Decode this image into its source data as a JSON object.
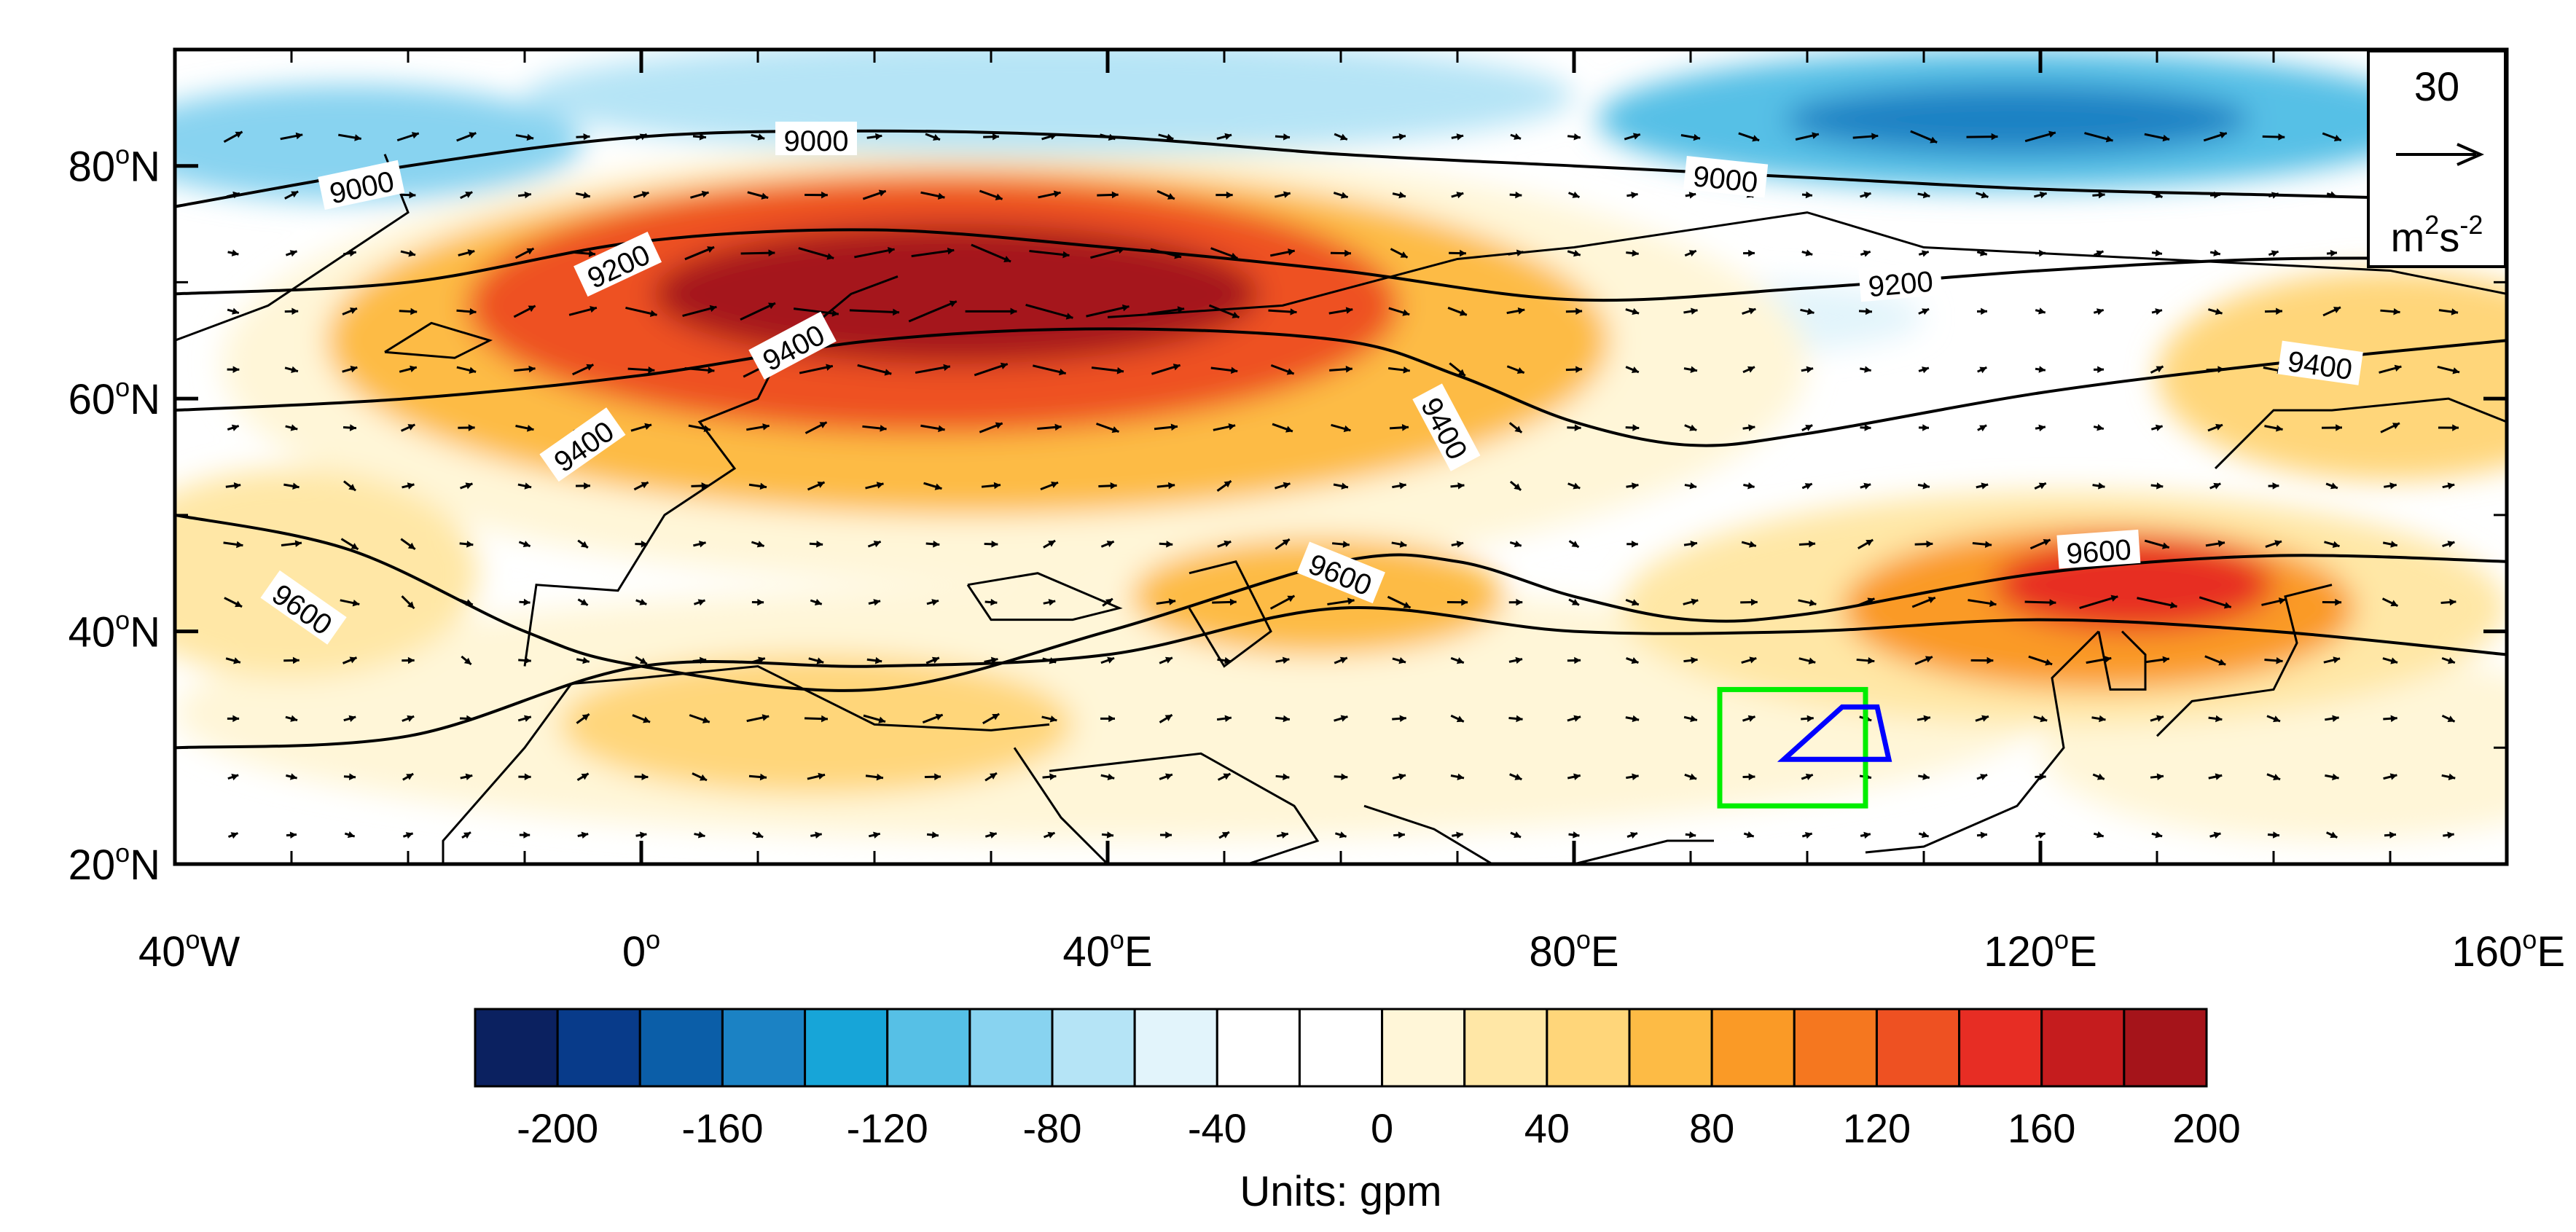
{
  "map": {
    "lon_range": [
      -40,
      160
    ],
    "lat_range": [
      20,
      90
    ],
    "lon_ticks": [
      {
        "lon": -40,
        "deg": "40",
        "hemi": "W"
      },
      {
        "lon": 0,
        "deg": "0",
        "hemi": ""
      },
      {
        "lon": 40,
        "deg": "40",
        "hemi": "E"
      },
      {
        "lon": 80,
        "deg": "80",
        "hemi": "E"
      },
      {
        "lon": 120,
        "deg": "120",
        "hemi": "E"
      },
      {
        "lon": 160,
        "deg": "160",
        "hemi": "E"
      }
    ],
    "lat_ticks": [
      {
        "lat": 20,
        "deg": "20",
        "hemi": "N"
      },
      {
        "lat": 40,
        "deg": "40",
        "hemi": "N"
      },
      {
        "lat": 60,
        "deg": "60",
        "hemi": "N"
      },
      {
        "lat": 80,
        "deg": "80",
        "hemi": "N"
      }
    ],
    "degree_symbol": "o",
    "anomaly_blobs": [
      {
        "lon": 27,
        "lat": 69,
        "rx": 26,
        "ry": 6,
        "value": 200
      },
      {
        "lon": 25,
        "lat": 68,
        "rx": 40,
        "ry": 11,
        "value": 140
      },
      {
        "lon": 28,
        "lat": 65,
        "rx": 55,
        "ry": 15,
        "value": 80
      },
      {
        "lon": 32,
        "lat": 63,
        "rx": 68,
        "ry": 19,
        "value": 30
      },
      {
        "lon": 128,
        "lat": 44,
        "rx": 12,
        "ry": 4,
        "value": 160
      },
      {
        "lon": 125,
        "lat": 42,
        "rx": 22,
        "ry": 7,
        "value": 100
      },
      {
        "lon": 122,
        "lat": 42,
        "rx": 38,
        "ry": 10,
        "value": 50
      },
      {
        "lon": 58,
        "lat": 43,
        "rx": 16,
        "ry": 5,
        "value": 80
      },
      {
        "lon": 15,
        "lat": 32,
        "rx": 22,
        "ry": 6,
        "value": 60
      },
      {
        "lon": 40,
        "lat": 33,
        "rx": 80,
        "ry": 11,
        "value": 20
      },
      {
        "lon": -30,
        "lat": 45,
        "rx": 16,
        "ry": 9,
        "value": 50
      },
      {
        "lon": 150,
        "lat": 62,
        "rx": 20,
        "ry": 9,
        "value": 60
      },
      {
        "lon": 145,
        "lat": 30,
        "rx": 25,
        "ry": 8,
        "value": 20
      },
      {
        "lon": 118,
        "lat": 84,
        "rx": 36,
        "ry": 6,
        "value": -80
      },
      {
        "lon": 118,
        "lat": 84,
        "rx": 20,
        "ry": 3,
        "value": -120
      },
      {
        "lon": -25,
        "lat": 82,
        "rx": 20,
        "ry": 5,
        "value": -60
      },
      {
        "lon": 35,
        "lat": 86,
        "rx": 45,
        "ry": 5,
        "value": -40
      },
      {
        "lon": 95,
        "lat": 67,
        "rx": 15,
        "ry": 3,
        "value": -20
      }
    ],
    "height_contours": [
      {
        "value": 9000,
        "lons": [
          -40,
          -20,
          0,
          20,
          40,
          60,
          80,
          100,
          120,
          140,
          160
        ],
        "lats": [
          76.5,
          80,
          82.5,
          83,
          82.5,
          81,
          80,
          79,
          78,
          77.5,
          77
        ]
      },
      {
        "value": 9200,
        "lons": [
          -40,
          -20,
          0,
          20,
          40,
          60,
          80,
          100,
          120,
          140,
          160
        ],
        "lats": [
          69,
          70,
          73.5,
          74.5,
          73,
          71,
          68.5,
          69.5,
          71,
          72,
          72
        ]
      },
      {
        "value": 9400,
        "lons": [
          -40,
          -20,
          0,
          20,
          40,
          60,
          70,
          80,
          90,
          100,
          120,
          140,
          160
        ],
        "lats": [
          59,
          60,
          62,
          65,
          66,
          65,
          62,
          58,
          56,
          57,
          60.5,
          63,
          65
        ]
      },
      {
        "value": 9600,
        "lons": [
          -40,
          -25,
          -10,
          0,
          20,
          40,
          60,
          70,
          80,
          90,
          100,
          120,
          140,
          160
        ],
        "lats": [
          50,
          47,
          40,
          37,
          35,
          40,
          46,
          46,
          43,
          41,
          41.5,
          45,
          46.5,
          46
        ]
      },
      {
        "value": null,
        "lons": [
          -40,
          -20,
          0,
          20,
          40,
          60,
          80,
          100,
          120,
          140,
          160
        ],
        "lats": [
          30,
          31,
          37,
          37,
          38,
          42,
          40,
          40,
          41,
          40,
          38
        ]
      }
    ],
    "contour_labels": [
      {
        "text": "9000",
        "lon": 15,
        "lat": 82.3,
        "angle": 0
      },
      {
        "text": "9000",
        "lon": -24,
        "lat": 78.3,
        "angle": -12
      },
      {
        "text": "9000",
        "lon": 93,
        "lat": 79,
        "angle": 6
      },
      {
        "text": "9000",
        "lon": 155,
        "lat": 79.5,
        "angle": 4
      },
      {
        "text": "9200",
        "lon": -2,
        "lat": 71.5,
        "angle": -25
      },
      {
        "text": "9200",
        "lon": 108,
        "lat": 70,
        "angle": -5
      },
      {
        "text": "9400",
        "lon": 13,
        "lat": 64.5,
        "angle": -28
      },
      {
        "text": "9400",
        "lon": 69,
        "lat": 57.5,
        "angle": 62
      },
      {
        "text": "9400",
        "lon": 144,
        "lat": 63,
        "angle": 8
      },
      {
        "text": "9400",
        "lon": -5,
        "lat": 56,
        "angle": -35
      },
      {
        "text": "9600",
        "lon": 125,
        "lat": 47,
        "angle": -4
      },
      {
        "text": "9600",
        "lon": 60,
        "lat": 45,
        "angle": 22
      },
      {
        "text": "9600",
        "lon": -29,
        "lat": 42,
        "angle": 35
      }
    ],
    "coastline_hints": [
      {
        "name": "greenland-east",
        "lons": [
          -40,
          -32,
          -26,
          -20,
          -22
        ],
        "lats": [
          65,
          68,
          72,
          76,
          81
        ]
      },
      {
        "name": "iceland",
        "lons": [
          -22,
          -16,
          -13,
          -18,
          -22
        ],
        "lats": [
          64,
          63.5,
          65,
          66.5,
          64
        ]
      },
      {
        "name": "europe-west",
        "lons": [
          -10,
          -9,
          -2,
          2,
          8,
          5,
          10,
          12,
          18,
          22
        ],
        "lats": [
          37,
          44,
          43.5,
          50,
          54,
          58,
          60,
          64,
          69,
          70.5
        ]
      },
      {
        "name": "mediterranean-south",
        "lons": [
          -6,
          0,
          10,
          20,
          30,
          35
        ],
        "lats": [
          35.5,
          36,
          37,
          32,
          31.5,
          32
        ]
      },
      {
        "name": "africa-west",
        "lons": [
          -6,
          -10,
          -17,
          -17
        ],
        "lats": [
          35.5,
          30,
          22,
          20
        ]
      },
      {
        "name": "red-sea-west",
        "lons": [
          32,
          36,
          40,
          43
        ],
        "lats": [
          30,
          24,
          20,
          20
        ]
      },
      {
        "name": "arabia",
        "lons": [
          35,
          48,
          56,
          58,
          52
        ],
        "lats": [
          28,
          29.5,
          25,
          22,
          20
        ]
      },
      {
        "name": "india",
        "lons": [
          62,
          68,
          73,
          77,
          80,
          88,
          92
        ],
        "lats": [
          25,
          23,
          20,
          20,
          20,
          22,
          22
        ]
      },
      {
        "name": "china-coast",
        "lons": [
          105,
          110,
          118,
          122,
          121,
          125
        ],
        "lats": [
          21,
          21.5,
          25,
          30,
          36,
          40
        ]
      },
      {
        "name": "korea",
        "lons": [
          125,
          126,
          129,
          129,
          127
        ],
        "lats": [
          40,
          35,
          35,
          38,
          40
        ]
      },
      {
        "name": "japan",
        "lons": [
          130,
          133,
          140,
          142,
          141,
          145
        ],
        "lats": [
          31,
          34,
          35,
          39,
          43,
          44
        ]
      },
      {
        "name": "arctic-coast",
        "lons": [
          40,
          55,
          70,
          80,
          100,
          110,
          130,
          150,
          160
        ],
        "lats": [
          67,
          68,
          72,
          73,
          76,
          73,
          72,
          71,
          69
        ]
      },
      {
        "name": "okhotsk",
        "lons": [
          135,
          140,
          145,
          155,
          160
        ],
        "lats": [
          54,
          59,
          59,
          60,
          58
        ]
      },
      {
        "name": "caspian",
        "lons": [
          47,
          51,
          54,
          50,
          47
        ],
        "lats": [
          45,
          46,
          40,
          37,
          42
        ]
      },
      {
        "name": "black-sea",
        "lons": [
          28,
          34,
          41,
          37,
          30,
          28
        ],
        "lats": [
          44,
          45,
          42,
          41,
          41,
          44
        ]
      }
    ],
    "boxes": [
      {
        "name": "green-box",
        "color": "#00ee00",
        "lon_range": [
          92.5,
          105
        ],
        "lat_range": [
          25,
          35
        ]
      },
      {
        "name": "blue-box",
        "color": "#0000ff",
        "lons": [
          100,
          107,
          106,
          103,
          98
        ],
        "lats": [
          29,
          29,
          33.5,
          33.5,
          29
        ]
      }
    ],
    "reference_vector": {
      "value": "30",
      "units_base": "m",
      "units_exp1": "2",
      "units_mid": "s",
      "units_exp2": "-2"
    }
  },
  "colorbar": {
    "colors": [
      "#0b2160",
      "#083b8a",
      "#0b5ea8",
      "#1b82c4",
      "#17a5d8",
      "#56c0e6",
      "#88d3f0",
      "#b5e4f6",
      "#e2f4fb",
      "#ffffff",
      "#ffffff",
      "#fff6d8",
      "#ffe7a6",
      "#ffd67a",
      "#fdbb45",
      "#fa9a26",
      "#f5771f",
      "#ee5122",
      "#e72d24",
      "#c51c1e",
      "#a5141a"
    ],
    "tick_labels": [
      "-200",
      "-160",
      "-120",
      "-80",
      "-40",
      "0",
      "40",
      "80",
      "120",
      "160",
      "200"
    ],
    "title": "Units: gpm"
  }
}
